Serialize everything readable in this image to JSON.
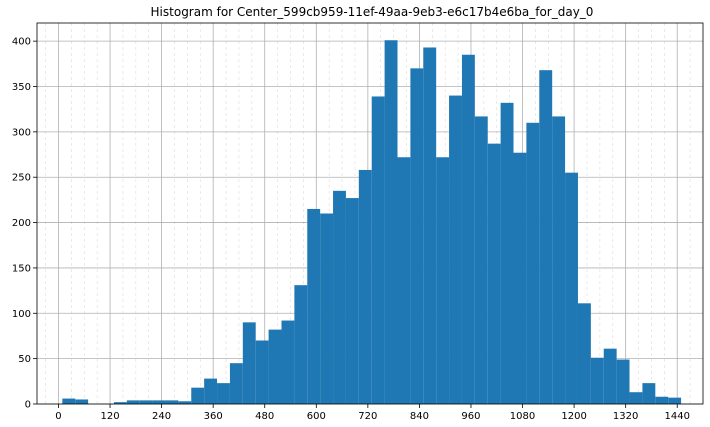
{
  "chart_data": {
    "type": "bar",
    "title": "Histogram for Center_599cb959-11ef-49aa-9eb3-e6c17b4e6ba_for_day_0",
    "xlabel": "",
    "ylabel": "",
    "bin_edges": [
      9,
      39,
      69,
      99,
      129,
      159,
      189,
      219,
      249,
      279,
      309,
      339,
      369,
      399,
      429,
      459,
      489,
      519,
      549,
      579,
      609,
      639,
      669,
      699,
      729,
      759,
      789,
      819,
      849,
      879,
      909,
      939,
      969,
      999,
      1029,
      1059,
      1089,
      1119,
      1149,
      1179,
      1209,
      1239,
      1269,
      1299,
      1329,
      1359,
      1389,
      1419,
      1449
    ],
    "values": [
      6,
      5,
      0,
      0,
      2,
      4,
      4,
      4,
      4,
      3,
      18,
      28,
      23,
      45,
      90,
      70,
      82,
      92,
      131,
      215,
      210,
      235,
      227,
      258,
      339,
      401,
      272,
      370,
      393,
      272,
      340,
      385,
      317,
      287,
      332,
      277,
      310,
      368,
      317,
      255,
      111,
      51,
      61,
      49,
      13,
      23,
      8,
      7
    ],
    "xlim": [
      -50,
      1500
    ],
    "ylim": [
      0,
      420
    ],
    "x_ticks": [
      "0",
      "120",
      "240",
      "360",
      "480",
      "600",
      "720",
      "840",
      "960",
      "1080",
      "1200",
      "1320",
      "1440"
    ],
    "y_ticks": [
      "0",
      "50",
      "100",
      "150",
      "200",
      "250",
      "300",
      "350",
      "400"
    ],
    "bar_color": "#1f77b4",
    "grid": true
  }
}
